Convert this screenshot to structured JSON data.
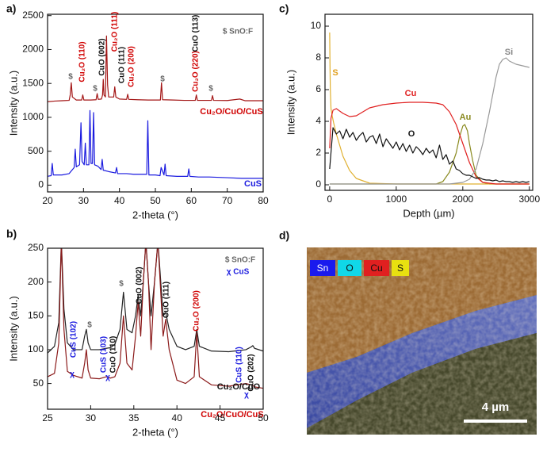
{
  "chart_data": [
    {
      "type": "line",
      "panel_label": "a)",
      "x_label": "2-theta (°)",
      "y_label": "Intensity (a.u.)",
      "xlim": [
        20,
        80
      ],
      "xticks": [
        20,
        30,
        40,
        50,
        60,
        70,
        80
      ],
      "ylim": [
        -100,
        2520
      ],
      "yticks": [
        0,
        500,
        1000,
        1500,
        2000,
        2500
      ],
      "series": [
        {
          "name": "Cu₂O/CuO/CuS",
          "color": "#a31515",
          "label_color": "#d00000",
          "x": [
            20,
            22,
            24,
            26,
            26.3,
            26.6,
            26.9,
            28,
            29.5,
            29.8,
            30.1,
            32,
            33.5,
            33.8,
            34.1,
            35,
            35.3,
            35.5,
            35.7,
            36.1,
            36.4,
            36.7,
            37,
            38.4,
            38.7,
            39,
            40,
            42,
            42.3,
            42.6,
            45,
            48,
            51.4,
            51.7,
            52,
            55,
            58,
            61.1,
            61.4,
            61.7,
            64,
            65.6,
            65.9,
            66.2,
            70,
            73.5,
            75,
            78,
            80
          ],
          "values": [
            1230,
            1240,
            1245,
            1250,
            1330,
            1510,
            1300,
            1255,
            1255,
            1330,
            1255,
            1255,
            1260,
            1350,
            1265,
            1270,
            1330,
            1560,
            1330,
            1300,
            2200,
            1480,
            1300,
            1300,
            1450,
            1300,
            1270,
            1265,
            1340,
            1265,
            1260,
            1255,
            1255,
            1510,
            1260,
            1255,
            1250,
            1250,
            1330,
            1250,
            1250,
            1250,
            1320,
            1250,
            1248,
            1270,
            1245,
            1245,
            1245
          ]
        },
        {
          "name": "CuS",
          "color": "#1a1adf",
          "label_color": "#1a1adf",
          "x": [
            20,
            21,
            21.3,
            21.6,
            24,
            26,
            27.4,
            27.7,
            28,
            28.9,
            29.3,
            29.6,
            30.2,
            30.5,
            30.8,
            31.5,
            31.8,
            32.1,
            32.5,
            32.8,
            33.1,
            34,
            34.9,
            35.2,
            35.5,
            37,
            38.9,
            39.2,
            39.5,
            42,
            44,
            46,
            47.6,
            47.9,
            48.2,
            50,
            51.3,
            51.6,
            52.4,
            52.7,
            53,
            56,
            59,
            59.3,
            59.6,
            62,
            65,
            70,
            74,
            80
          ],
          "values": [
            130,
            140,
            320,
            150,
            150,
            170,
            260,
            530,
            270,
            300,
            920,
            350,
            300,
            620,
            300,
            300,
            1100,
            320,
            320,
            1070,
            300,
            280,
            230,
            380,
            220,
            200,
            180,
            260,
            170,
            170,
            160,
            160,
            160,
            950,
            150,
            150,
            140,
            260,
            150,
            310,
            140,
            130,
            130,
            240,
            130,
            120,
            120,
            110,
            100,
            100
          ]
        }
      ],
      "annotations": [
        {
          "text": "Cu₂O (110)",
          "color": "#d00000"
        },
        {
          "text": "$",
          "color": "#666666"
        },
        {
          "text": "$",
          "color": "#666666"
        },
        {
          "text": "CuO (002)",
          "color": "#111111"
        },
        {
          "text": "Cu₂O (111)",
          "color": "#d00000"
        },
        {
          "text": "CuO (111)",
          "color": "#111111"
        },
        {
          "text": "Cu₂O (200)",
          "color": "#d00000"
        },
        {
          "text": "$",
          "color": "#666666"
        },
        {
          "text": "Cu₂O (220)",
          "color": "#d00000"
        },
        {
          "text": "CuO (113)",
          "color": "#111111"
        },
        {
          "text": "$",
          "color": "#666666"
        },
        {
          "text": "$ SnO:F",
          "color": "#666666"
        }
      ]
    },
    {
      "type": "line",
      "panel_label": "b)",
      "x_label": "2-theta (°)",
      "y_label": "Intensity (a.u.)",
      "xlim": [
        25,
        50
      ],
      "xticks": [
        25,
        30,
        35,
        40,
        45,
        50
      ],
      "ylim": [
        12,
        250
      ],
      "yticks": [
        50,
        100,
        150,
        200,
        250
      ],
      "series": [
        {
          "name": "Cu₂O/CuO",
          "color": "#222222",
          "label_color": "#111111",
          "x": [
            25,
            25.8,
            26.3,
            26.6,
            26.9,
            27.3,
            28,
            29,
            29.3,
            29.5,
            29.7,
            30,
            31,
            31.8,
            32.3,
            32.8,
            33.4,
            33.8,
            34.2,
            34.8,
            35.2,
            35.5,
            35.8,
            36.1,
            36.4,
            36.7,
            37,
            37.4,
            37.8,
            38.4,
            38.7,
            39.1,
            40,
            41,
            42,
            42.3,
            42.6,
            44,
            46,
            48,
            48.6,
            48.8,
            49,
            50
          ],
          "values": [
            95,
            105,
            140,
            260,
            160,
            110,
            100,
            100,
            120,
            130,
            110,
            100,
            100,
            102,
            103,
            108,
            130,
            185,
            130,
            125,
            150,
            180,
            150,
            200,
            260,
            200,
            150,
            200,
            260,
            150,
            155,
            130,
            105,
            100,
            105,
            130,
            105,
            98,
            97,
            100,
            104,
            106,
            102,
            98
          ]
        },
        {
          "name": "Cu₂O/CuO/CuS",
          "color": "#8b1a1a",
          "label_color": "#d00000",
          "x": [
            25,
            25.8,
            26.3,
            26.6,
            26.9,
            27.3,
            28,
            29,
            29.3,
            29.5,
            29.7,
            30,
            31,
            31.8,
            32.3,
            32.8,
            33.4,
            33.8,
            34.2,
            34.8,
            35.2,
            35.5,
            35.8,
            36.1,
            36.4,
            36.7,
            37,
            37.4,
            37.8,
            38.4,
            38.7,
            39.1,
            40,
            41,
            42,
            42.3,
            42.6,
            44,
            46,
            48,
            48.6,
            48.8,
            49,
            50
          ],
          "values": [
            60,
            65,
            110,
            260,
            130,
            68,
            62,
            58,
            80,
            100,
            70,
            58,
            57,
            60,
            58,
            60,
            80,
            150,
            80,
            70,
            120,
            170,
            120,
            200,
            260,
            200,
            100,
            200,
            260,
            120,
            145,
            100,
            55,
            50,
            60,
            125,
            60,
            48,
            46,
            50,
            48,
            47,
            45,
            43
          ]
        }
      ],
      "annotations": [
        {
          "text": "$ SnO:F",
          "color": "#666666"
        },
        {
          "text": "χ CuS",
          "color": "#1a1adf"
        },
        {
          "text": "CuS (102)",
          "color": "#1a1adf"
        },
        {
          "text": "$",
          "color": "#666666"
        },
        {
          "text": "CuS (103)",
          "color": "#1a1adf"
        },
        {
          "text": "CuO (110)",
          "color": "#111111"
        },
        {
          "text": "$",
          "color": "#666666"
        },
        {
          "text": "CuO (002)",
          "color": "#111111"
        },
        {
          "text": "CuO (111)",
          "color": "#111111"
        },
        {
          "text": "Cu₂O (200)",
          "color": "#d00000"
        },
        {
          "text": "CuS (110)",
          "color": "#1a1adf"
        },
        {
          "text": "CuO (202)",
          "color": "#111111"
        },
        {
          "text": "χ",
          "color": "#1a1adf"
        },
        {
          "text": "χ",
          "color": "#1a1adf"
        },
        {
          "text": "χ",
          "color": "#1a1adf"
        }
      ]
    },
    {
      "type": "line",
      "panel_label": "c)",
      "x_label": "Depth (µm)",
      "y_label": "Intensity (a.u.)",
      "xlim": [
        -70,
        3050
      ],
      "xticks": [
        0,
        1000,
        2000,
        3000
      ],
      "ylim": [
        -0.35,
        10.75
      ],
      "yticks": [
        0,
        2,
        4,
        6,
        8,
        10
      ],
      "series": [
        {
          "name": "Au",
          "color": "#8a8a20",
          "label_color": "#8a8a20",
          "x": [
            0,
            1600,
            1700,
            1800,
            1900,
            1950,
            2000,
            2030,
            2070,
            2100,
            2150,
            2200,
            2300,
            2400,
            3000
          ],
          "values": [
            0.05,
            0.05,
            0.2,
            0.8,
            2.0,
            3.0,
            3.7,
            3.8,
            3.4,
            2.6,
            1.5,
            0.6,
            0.15,
            0.05,
            0.05
          ]
        },
        {
          "name": "S",
          "color": "#e0b030",
          "label_color": "#e0a020",
          "x": [
            0,
            5,
            10,
            20,
            40,
            60,
            100,
            150,
            200,
            300,
            400,
            600,
            1000,
            1500,
            2000,
            2500,
            3000
          ],
          "values": [
            9.6,
            7.5,
            6,
            4.8,
            4.3,
            3.9,
            3.2,
            2.5,
            1.8,
            0.9,
            0.4,
            0.1,
            0.05,
            0.05,
            0.05,
            0.05,
            0.05
          ]
        },
        {
          "name": "Cu",
          "color": "#e02020",
          "label_color": "#e02020",
          "x": [
            0,
            20,
            50,
            100,
            200,
            300,
            400,
            500,
            600,
            800,
            1000,
            1200,
            1400,
            1600,
            1700,
            1800,
            1900,
            2000,
            2100,
            2200,
            2300,
            2500,
            3000
          ],
          "values": [
            2.3,
            4.2,
            4.7,
            4.8,
            4.5,
            4.3,
            4.35,
            4.6,
            4.85,
            5.05,
            5.15,
            5.2,
            5.2,
            5.15,
            5.05,
            4.6,
            3.8,
            2.6,
            1.4,
            0.5,
            0.15,
            0.05,
            0.05
          ]
        },
        {
          "name": "Si",
          "color": "#999999",
          "label_color": "#888888",
          "x": [
            0,
            1800,
            2000,
            2100,
            2200,
            2300,
            2400,
            2500,
            2550,
            2600,
            2650,
            2700,
            2800,
            2900,
            3000
          ],
          "values": [
            0.05,
            0.05,
            0.15,
            0.35,
            1.0,
            2.6,
            4.6,
            6.8,
            7.6,
            7.9,
            8.0,
            7.8,
            7.6,
            7.5,
            7.4
          ]
        },
        {
          "name": "O",
          "color": "#111111",
          "label_color": "#111111",
          "x": [
            0,
            50,
            100,
            150,
            200,
            250,
            300,
            350,
            400,
            450,
            500,
            550,
            600,
            650,
            700,
            750,
            800,
            850,
            900,
            950,
            1000,
            1050,
            1100,
            1150,
            1200,
            1250,
            1300,
            1350,
            1400,
            1450,
            1500,
            1550,
            1600,
            1650,
            1700,
            1750,
            1800,
            1850,
            1900,
            1950,
            2000,
            2050,
            2100,
            2150,
            2200,
            2250,
            2300,
            2350,
            2400,
            2450,
            2500,
            2550,
            2600,
            2650,
            2700,
            2750,
            2800,
            2850,
            2900,
            2950,
            3000
          ],
          "values": [
            1.0,
            3.6,
            3.2,
            3.4,
            2.9,
            3.5,
            3.0,
            3.3,
            2.8,
            3.1,
            3.3,
            2.7,
            3.0,
            3.1,
            2.6,
            3.2,
            2.4,
            2.9,
            2.6,
            2.3,
            2.7,
            2.2,
            2.6,
            2.1,
            2.5,
            2.0,
            2.4,
            2.2,
            1.9,
            2.3,
            2.0,
            2.2,
            1.7,
            2.5,
            1.6,
            1.9,
            1.3,
            1.5,
            1.0,
            0.9,
            0.7,
            0.6,
            0.6,
            0.5,
            0.4,
            0.45,
            0.35,
            0.3,
            0.3,
            0.25,
            0.3,
            0.2,
            0.25,
            0.2,
            0.2,
            0.15,
            0.2,
            0.15,
            0.2,
            0.15,
            0.2
          ]
        }
      ]
    }
  ],
  "image_panel": {
    "label": "d)",
    "legend": [
      "Sn",
      "O",
      "Cu",
      "S"
    ],
    "scale_bar": "4 µm"
  }
}
